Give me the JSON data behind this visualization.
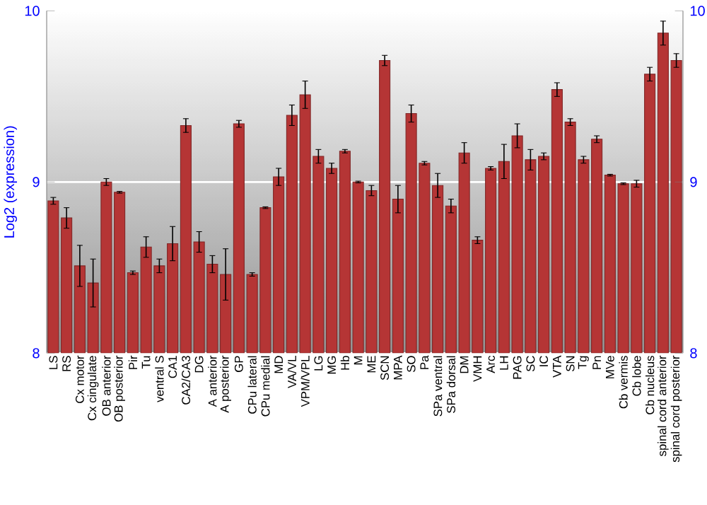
{
  "chart_data": {
    "type": "bar",
    "ylabel": "Log2 (expression)",
    "categories": [
      "LS",
      "RS",
      "Cx motor",
      "Cx cingulate",
      "OB anterior",
      "OB posterior",
      "Pir",
      "Tu",
      "ventral S",
      "CA1",
      "CA2/CA3",
      "DG",
      "A anterior",
      "A posterior",
      "GP",
      "CPu lateral",
      "CPu medial",
      "MD",
      "VA/VL",
      "VPM/VPL",
      "LG",
      "MG",
      "Hb",
      "M",
      "ME",
      "SCN",
      "MPA",
      "SO",
      "Pa",
      "SPa ventral",
      "SPa dorsal",
      "DM",
      "VMH",
      "Arc",
      "LH",
      "PAG",
      "SC",
      "IC",
      "VTA",
      "SN",
      "Tg",
      "Pn",
      "MVe",
      "Cb vermis",
      "Cb lobe",
      "Cb nucleus",
      "spinal cord anterior",
      "spinal cord posterior"
    ],
    "values": [
      8.89,
      8.79,
      8.51,
      8.41,
      9.0,
      8.94,
      8.47,
      8.62,
      8.51,
      8.64,
      9.33,
      8.65,
      8.52,
      8.46,
      9.34,
      8.46,
      8.85,
      9.03,
      9.39,
      9.51,
      9.15,
      9.08,
      9.18,
      9.0,
      8.95,
      9.71,
      8.9,
      9.4,
      9.11,
      8.98,
      8.86,
      9.17,
      8.66,
      9.08,
      9.12,
      9.27,
      9.13,
      9.15,
      9.54,
      9.35,
      9.13,
      9.25,
      9.04,
      8.99,
      8.99,
      9.63,
      9.87,
      9.71
    ],
    "errors": [
      0.02,
      0.06,
      0.12,
      0.14,
      0.02,
      0.005,
      0.01,
      0.06,
      0.04,
      0.1,
      0.04,
      0.06,
      0.05,
      0.15,
      0.02,
      0.01,
      0.005,
      0.05,
      0.06,
      0.08,
      0.04,
      0.03,
      0.01,
      0.005,
      0.03,
      0.03,
      0.08,
      0.05,
      0.01,
      0.07,
      0.04,
      0.06,
      0.02,
      0.01,
      0.1,
      0.07,
      0.06,
      0.02,
      0.04,
      0.02,
      0.02,
      0.02,
      0.005,
      0.005,
      0.02,
      0.04,
      0.07,
      0.04
    ],
    "color": "#b53535",
    "ylim": [
      8,
      10
    ],
    "yticks": [
      8,
      9,
      10
    ],
    "y2lim": [
      8,
      10
    ],
    "y2ticks": [
      8,
      9,
      10
    ],
    "grid": "y"
  }
}
